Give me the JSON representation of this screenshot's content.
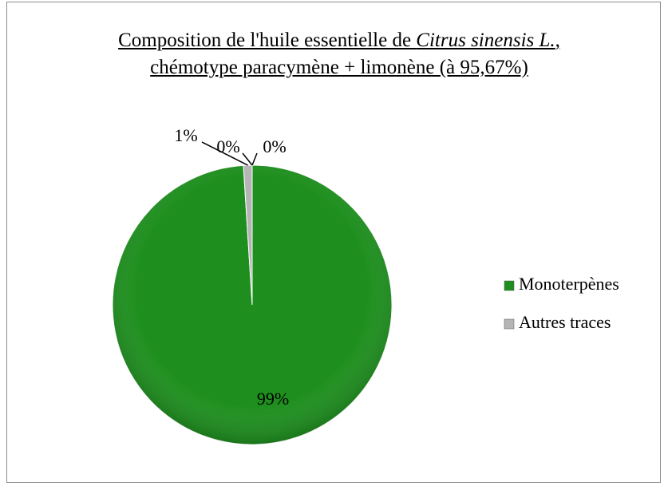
{
  "chart_data": {
    "type": "pie",
    "title": [
      "Composition de l'huile essentielle de ",
      "Citrus sinensis L.",
      ", chémotype paracymène + limonène (à 95,67%)"
    ],
    "categories": [
      "Monoterpènes",
      "Autres traces",
      null,
      null
    ],
    "values": [
      99,
      1,
      0,
      0
    ],
    "value_labels": [
      "99%",
      "1%",
      "0%",
      "0%"
    ],
    "colors": [
      "#1e8f1e",
      "#b5b5b5",
      "#8ea8d8",
      "#d08a8a"
    ],
    "legend": "right"
  }
}
